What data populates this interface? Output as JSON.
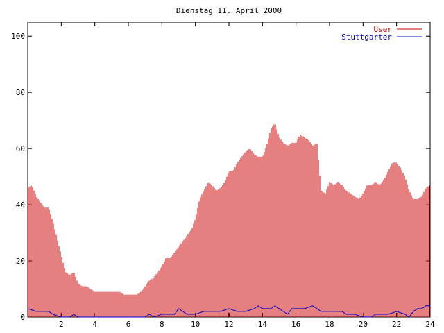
{
  "chart_data": {
    "type": "bar",
    "title": "Dienstag 11. April 2000",
    "xlabel": "",
    "ylabel": "",
    "xlim": [
      0,
      24
    ],
    "ylim": [
      0,
      105
    ],
    "x_ticks": [
      2,
      4,
      6,
      8,
      10,
      12,
      14,
      16,
      18,
      20,
      22,
      24
    ],
    "y_ticks": [
      0,
      20,
      40,
      60,
      80,
      100
    ],
    "grid": false,
    "legend_position": "top-right",
    "series": [
      {
        "name": "User",
        "style": "impulses",
        "color": "#cc0000",
        "points": [
          [
            0.0,
            46
          ],
          [
            0.25,
            47
          ],
          [
            0.5,
            43
          ],
          [
            0.75,
            41
          ],
          [
            1.0,
            39
          ],
          [
            1.25,
            39
          ],
          [
            1.5,
            34
          ],
          [
            1.75,
            28
          ],
          [
            2.0,
            22
          ],
          [
            2.25,
            16
          ],
          [
            2.5,
            15
          ],
          [
            2.75,
            16
          ],
          [
            3.0,
            12
          ],
          [
            3.25,
            11
          ],
          [
            3.5,
            11
          ],
          [
            3.75,
            10
          ],
          [
            4.0,
            9
          ],
          [
            4.25,
            9
          ],
          [
            4.5,
            9
          ],
          [
            4.75,
            9
          ],
          [
            5.0,
            9
          ],
          [
            5.25,
            9
          ],
          [
            5.5,
            9
          ],
          [
            5.75,
            8
          ],
          [
            6.0,
            8
          ],
          [
            6.25,
            8
          ],
          [
            6.5,
            8
          ],
          [
            6.75,
            9
          ],
          [
            7.0,
            11
          ],
          [
            7.25,
            13
          ],
          [
            7.5,
            14
          ],
          [
            7.75,
            16
          ],
          [
            8.0,
            18
          ],
          [
            8.25,
            21
          ],
          [
            8.5,
            21
          ],
          [
            8.75,
            23
          ],
          [
            9.0,
            25
          ],
          [
            9.25,
            27
          ],
          [
            9.5,
            29
          ],
          [
            9.75,
            31
          ],
          [
            10.0,
            35
          ],
          [
            10.25,
            42
          ],
          [
            10.5,
            45
          ],
          [
            10.75,
            48
          ],
          [
            11.0,
            47
          ],
          [
            11.25,
            45
          ],
          [
            11.5,
            46
          ],
          [
            11.75,
            48
          ],
          [
            12.0,
            52
          ],
          [
            12.25,
            52
          ],
          [
            12.5,
            55
          ],
          [
            12.75,
            57
          ],
          [
            13.0,
            59
          ],
          [
            13.25,
            60
          ],
          [
            13.5,
            58
          ],
          [
            13.75,
            57
          ],
          [
            14.0,
            57
          ],
          [
            14.25,
            61
          ],
          [
            14.5,
            67
          ],
          [
            14.75,
            69
          ],
          [
            15.0,
            64
          ],
          [
            15.25,
            62
          ],
          [
            15.5,
            61
          ],
          [
            15.75,
            62
          ],
          [
            16.0,
            62
          ],
          [
            16.25,
            65
          ],
          [
            16.5,
            64
          ],
          [
            16.75,
            63
          ],
          [
            17.0,
            61
          ],
          [
            17.25,
            62
          ],
          [
            17.5,
            45
          ],
          [
            17.75,
            44
          ],
          [
            18.0,
            48
          ],
          [
            18.25,
            47
          ],
          [
            18.5,
            48
          ],
          [
            18.75,
            47
          ],
          [
            19.0,
            45
          ],
          [
            19.25,
            44
          ],
          [
            19.5,
            43
          ],
          [
            19.75,
            42
          ],
          [
            20.0,
            44
          ],
          [
            20.25,
            47
          ],
          [
            20.5,
            47
          ],
          [
            20.75,
            48
          ],
          [
            21.0,
            47
          ],
          [
            21.25,
            49
          ],
          [
            21.5,
            52
          ],
          [
            21.75,
            55
          ],
          [
            22.0,
            55
          ],
          [
            22.25,
            53
          ],
          [
            22.5,
            50
          ],
          [
            22.75,
            45
          ],
          [
            23.0,
            42
          ],
          [
            23.25,
            42
          ],
          [
            23.5,
            43
          ],
          [
            23.75,
            46
          ],
          [
            24.0,
            47
          ]
        ]
      },
      {
        "name": "Stuttgarter",
        "style": "lines",
        "color": "#0000cc",
        "points": [
          [
            0.0,
            3
          ],
          [
            0.5,
            2
          ],
          [
            1.0,
            2
          ],
          [
            1.25,
            2
          ],
          [
            1.5,
            1
          ],
          [
            2.0,
            0
          ],
          [
            2.5,
            0
          ],
          [
            2.75,
            1
          ],
          [
            3.0,
            0
          ],
          [
            4.0,
            0
          ],
          [
            5.0,
            0
          ],
          [
            6.0,
            0
          ],
          [
            7.0,
            0
          ],
          [
            7.25,
            1
          ],
          [
            7.5,
            0
          ],
          [
            8.0,
            1
          ],
          [
            8.5,
            1
          ],
          [
            8.75,
            1
          ],
          [
            9.0,
            3
          ],
          [
            9.25,
            2
          ],
          [
            9.5,
            1
          ],
          [
            10.0,
            1
          ],
          [
            10.5,
            2
          ],
          [
            11.0,
            2
          ],
          [
            11.5,
            2
          ],
          [
            12.0,
            3
          ],
          [
            12.5,
            2
          ],
          [
            13.0,
            2
          ],
          [
            13.5,
            3
          ],
          [
            13.75,
            4
          ],
          [
            14.0,
            3
          ],
          [
            14.5,
            3
          ],
          [
            14.75,
            4
          ],
          [
            15.0,
            3
          ],
          [
            15.5,
            1
          ],
          [
            15.75,
            3
          ],
          [
            16.0,
            3
          ],
          [
            16.5,
            3
          ],
          [
            17.0,
            4
          ],
          [
            17.25,
            3
          ],
          [
            17.5,
            2
          ],
          [
            18.0,
            2
          ],
          [
            18.5,
            2
          ],
          [
            18.75,
            2
          ],
          [
            19.0,
            1
          ],
          [
            19.5,
            1
          ],
          [
            20.0,
            0
          ],
          [
            20.5,
            0
          ],
          [
            20.75,
            1
          ],
          [
            21.0,
            1
          ],
          [
            21.5,
            1
          ],
          [
            22.0,
            2
          ],
          [
            22.5,
            1
          ],
          [
            22.75,
            0
          ],
          [
            23.0,
            2
          ],
          [
            23.25,
            3
          ],
          [
            23.5,
            3
          ],
          [
            23.75,
            4
          ],
          [
            24.0,
            4
          ]
        ]
      }
    ]
  }
}
